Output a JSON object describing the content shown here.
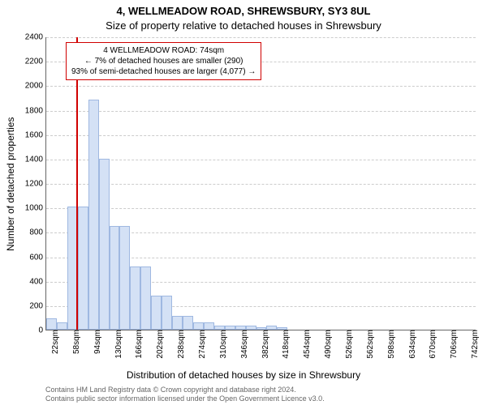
{
  "title_line1": "4, WELLMEADOW ROAD, SHREWSBURY, SY3 8UL",
  "title_line2": "Size of property relative to detached houses in Shrewsbury",
  "title_fontsize": 13,
  "ylabel": "Number of detached properties",
  "xlabel": "Distribution of detached houses by size in Shrewsbury",
  "axis_label_fontsize": 12,
  "tick_fontsize": 10,
  "credit_fontsize": 9,
  "credit_line1": "Contains HM Land Registry data © Crown copyright and database right 2024.",
  "credit_line2": "Contains public sector information licensed under the Open Government Licence v3.0.",
  "chart": {
    "type": "histogram",
    "background_color": "#ffffff",
    "grid_color": "#cccccc",
    "axis_color": "#666666",
    "bar_fill": "#d4e1f5",
    "bar_stroke": "#9fb8e1",
    "marker_color": "#d00000",
    "info_border_color": "#d00000",
    "ylim": [
      0,
      2400
    ],
    "ytick_step": 200,
    "x_bin_start": 22,
    "x_bin_width": 18,
    "x_bins": 41,
    "x_tick_every": 2,
    "x_tick_unit": "sqm",
    "bar_values": [
      90,
      60,
      1010,
      1010,
      1880,
      1400,
      850,
      850,
      520,
      520,
      280,
      280,
      110,
      110,
      60,
      60,
      30,
      30,
      30,
      30,
      20,
      30,
      20,
      0,
      0,
      0,
      0,
      0,
      0,
      0,
      0,
      0,
      0,
      0,
      0,
      0,
      0,
      0,
      0,
      0,
      0
    ],
    "marker_value": 74,
    "info_box": {
      "line1": "4 WELLMEADOW ROAD: 74sqm",
      "line2": "← 7% of detached houses are smaller (290)",
      "line3": "93% of semi-detached houses are larger (4,077) →",
      "fontsize": 10
    }
  }
}
